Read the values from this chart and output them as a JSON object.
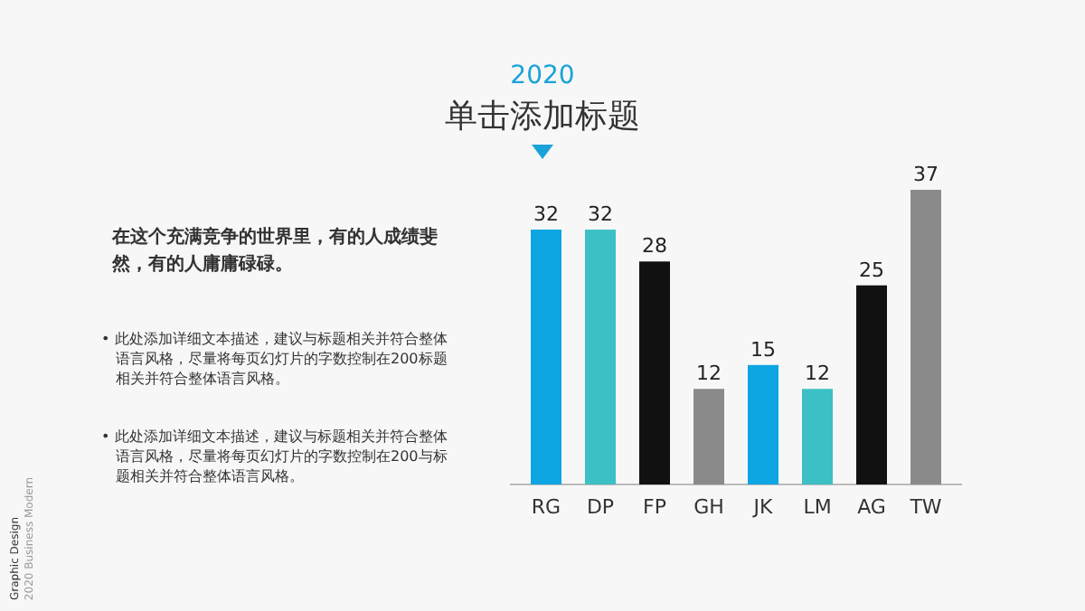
{
  "chart_data": {
    "type": "bar",
    "subtitle": "2020",
    "title": "单击添加标题",
    "categories": [
      "RG",
      "DP",
      "FP",
      "GH",
      "JK",
      "LM",
      "AG",
      "TW"
    ],
    "values": [
      32,
      32,
      28,
      12,
      15,
      12,
      25,
      37
    ],
    "colors": [
      "#0ea5e3",
      "#3cc0c5",
      "#111111",
      "#8a8a8a",
      "#0ea5e3",
      "#3cc0c5",
      "#111111",
      "#8a8a8a"
    ],
    "data_labels": true,
    "annotations": [
      "在这个充满竞争的世界里，有的人成绩斐然，有的人庸庸碌碌。",
      "• 此处添加详细文本描述，建议与标题相关并符合整体语言风格，尽量将每页幻灯片的字数控制在200标题相关并符合整体语言风格。",
      "• 此处添加详细文本描述，建议与标题相关并符合整体语言风格，尽量将每页幻灯片的字数控制在200与标题相关并符合整体语言风格。",
      "Graphic Design",
      "2020 Business Modern"
    ]
  }
}
